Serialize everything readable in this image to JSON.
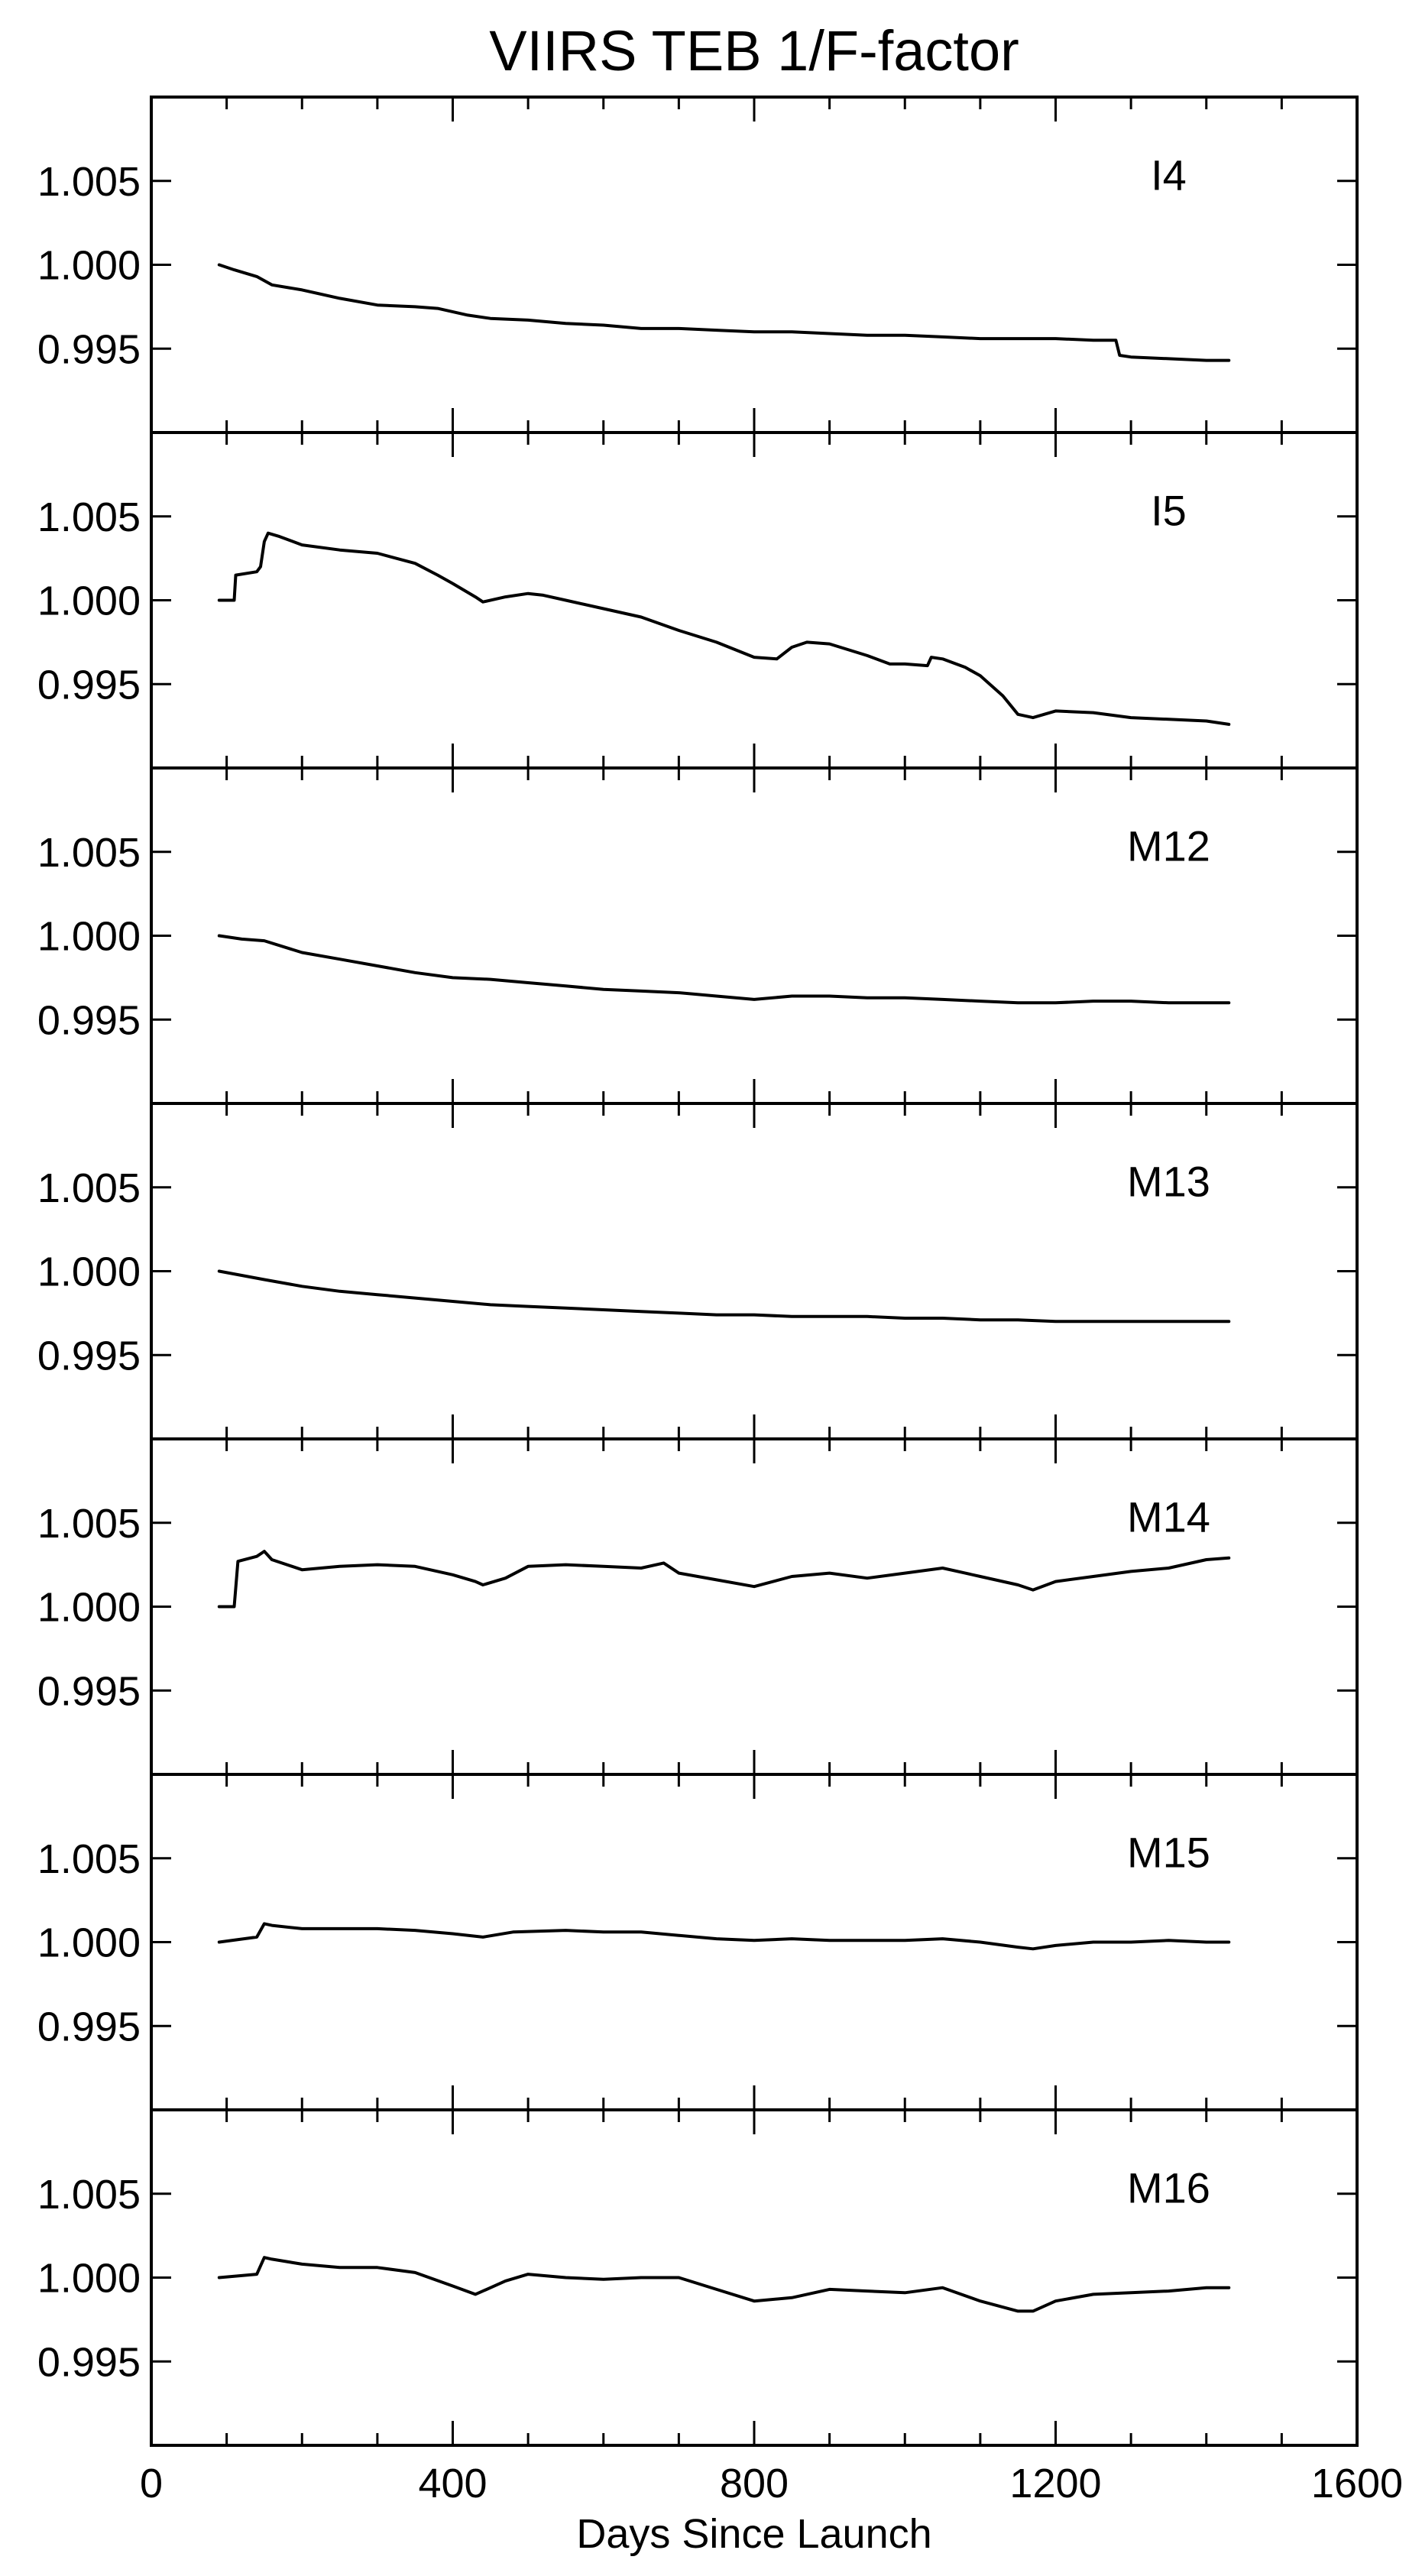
{
  "chart_data": {
    "type": "line",
    "title": "VIIRS TEB 1/F-factor",
    "xlabel": "Days Since Launch",
    "ylabel": "",
    "xlim": [
      0,
      1600
    ],
    "xticks": [
      0,
      400,
      800,
      1200,
      1600
    ],
    "x_minor_step": 100,
    "ylim": [
      0.99,
      1.01
    ],
    "yticks": [
      0.995,
      1.0,
      1.005
    ],
    "ytick_labels": [
      "0.995",
      "1.000",
      "1.005"
    ],
    "line_color": "#000000",
    "grid": false,
    "panels": [
      {
        "label": "I4",
        "x": [
          90,
          110,
          140,
          160,
          200,
          250,
          300,
          350,
          380,
          420,
          450,
          500,
          550,
          600,
          650,
          700,
          750,
          800,
          850,
          900,
          950,
          1000,
          1050,
          1100,
          1150,
          1200,
          1250,
          1280,
          1285,
          1300,
          1350,
          1400,
          1430
        ],
        "y": [
          1.0,
          0.9997,
          0.9993,
          0.9988,
          0.9985,
          0.998,
          0.9976,
          0.9975,
          0.9974,
          0.997,
          0.9968,
          0.9967,
          0.9965,
          0.9964,
          0.9962,
          0.9962,
          0.9961,
          0.996,
          0.996,
          0.9959,
          0.9958,
          0.9958,
          0.9957,
          0.9956,
          0.9956,
          0.9956,
          0.9955,
          0.9955,
          0.9946,
          0.9945,
          0.9944,
          0.9943,
          0.9943
        ]
      },
      {
        "label": "I5",
        "x": [
          90,
          110,
          112,
          140,
          145,
          150,
          155,
          170,
          200,
          250,
          300,
          350,
          380,
          400,
          430,
          440,
          470,
          500,
          520,
          550,
          600,
          650,
          700,
          750,
          800,
          830,
          850,
          870,
          900,
          950,
          980,
          1000,
          1030,
          1035,
          1050,
          1080,
          1100,
          1130,
          1150,
          1170,
          1200,
          1250,
          1300,
          1350,
          1400,
          1430
        ],
        "y": [
          1.0,
          1.0,
          1.0015,
          1.0017,
          1.002,
          1.0035,
          1.004,
          1.0038,
          1.0033,
          1.003,
          1.0028,
          1.0022,
          1.0015,
          1.001,
          1.0002,
          0.9999,
          1.0002,
          1.0004,
          1.0003,
          1.0,
          0.9995,
          0.999,
          0.9982,
          0.9975,
          0.9966,
          0.9965,
          0.9972,
          0.9975,
          0.9974,
          0.9967,
          0.9962,
          0.9962,
          0.9961,
          0.9966,
          0.9965,
          0.996,
          0.9955,
          0.9943,
          0.9932,
          0.993,
          0.9934,
          0.9933,
          0.993,
          0.9929,
          0.9928,
          0.9926
        ]
      },
      {
        "label": "M12",
        "x": [
          90,
          120,
          150,
          200,
          250,
          300,
          350,
          400,
          450,
          500,
          550,
          600,
          650,
          700,
          750,
          800,
          850,
          900,
          950,
          1000,
          1050,
          1100,
          1150,
          1200,
          1250,
          1300,
          1350,
          1400,
          1430
        ],
        "y": [
          1.0,
          0.9998,
          0.9997,
          0.999,
          0.9986,
          0.9982,
          0.9978,
          0.9975,
          0.9974,
          0.9972,
          0.997,
          0.9968,
          0.9967,
          0.9966,
          0.9964,
          0.9962,
          0.9964,
          0.9964,
          0.9963,
          0.9963,
          0.9962,
          0.9961,
          0.996,
          0.996,
          0.9961,
          0.9961,
          0.996,
          0.996,
          0.996
        ]
      },
      {
        "label": "M13",
        "x": [
          90,
          150,
          200,
          250,
          300,
          350,
          400,
          450,
          500,
          550,
          600,
          650,
          700,
          750,
          800,
          850,
          900,
          950,
          1000,
          1050,
          1100,
          1150,
          1200,
          1250,
          1300,
          1350,
          1400,
          1430
        ],
        "y": [
          1.0,
          0.9995,
          0.9991,
          0.9988,
          0.9986,
          0.9984,
          0.9982,
          0.998,
          0.9979,
          0.9978,
          0.9977,
          0.9976,
          0.9975,
          0.9974,
          0.9974,
          0.9973,
          0.9973,
          0.9973,
          0.9972,
          0.9972,
          0.9971,
          0.9971,
          0.997,
          0.997,
          0.997,
          0.997,
          0.997,
          0.997
        ]
      },
      {
        "label": "M14",
        "x": [
          90,
          110,
          115,
          140,
          150,
          160,
          200,
          250,
          300,
          350,
          400,
          430,
          440,
          470,
          500,
          550,
          600,
          650,
          680,
          700,
          750,
          800,
          850,
          900,
          950,
          1000,
          1050,
          1080,
          1100,
          1150,
          1170,
          1200,
          1250,
          1300,
          1350,
          1400,
          1430
        ],
        "y": [
          1.0,
          1.0,
          1.0027,
          1.003,
          1.0033,
          1.0028,
          1.0022,
          1.0024,
          1.0025,
          1.0024,
          1.0019,
          1.0015,
          1.0013,
          1.0017,
          1.0024,
          1.0025,
          1.0024,
          1.0023,
          1.0026,
          1.002,
          1.0016,
          1.0012,
          1.0018,
          1.002,
          1.0017,
          1.002,
          1.0023,
          1.002,
          1.0018,
          1.0013,
          1.001,
          1.0015,
          1.0018,
          1.0021,
          1.0023,
          1.0028,
          1.0029
        ]
      },
      {
        "label": "M15",
        "x": [
          90,
          140,
          150,
          160,
          200,
          250,
          300,
          350,
          400,
          440,
          480,
          550,
          600,
          650,
          700,
          750,
          800,
          850,
          900,
          950,
          1000,
          1050,
          1100,
          1150,
          1170,
          1200,
          1250,
          1300,
          1350,
          1400,
          1430
        ],
        "y": [
          1.0,
          1.0003,
          1.0011,
          1.001,
          1.0008,
          1.0008,
          1.0008,
          1.0007,
          1.0005,
          1.0003,
          1.0006,
          1.0007,
          1.0006,
          1.0006,
          1.0004,
          1.0002,
          1.0001,
          1.0002,
          1.0001,
          1.0001,
          1.0001,
          1.0002,
          1.0,
          0.9997,
          0.9996,
          0.9998,
          1.0,
          1.0,
          1.0001,
          1.0,
          1.0
        ]
      },
      {
        "label": "M16",
        "x": [
          90,
          140,
          150,
          160,
          200,
          250,
          300,
          350,
          400,
          430,
          440,
          470,
          500,
          550,
          600,
          650,
          700,
          750,
          800,
          850,
          900,
          950,
          1000,
          1050,
          1100,
          1150,
          1170,
          1200,
          1250,
          1300,
          1350,
          1400,
          1430
        ],
        "y": [
          1.0,
          1.0002,
          1.0012,
          1.0011,
          1.0008,
          1.0006,
          1.0006,
          1.0003,
          0.9995,
          0.999,
          0.9992,
          0.9998,
          1.0002,
          1.0,
          0.9999,
          1.0,
          1.0,
          0.9993,
          0.9986,
          0.9988,
          0.9993,
          0.9992,
          0.9991,
          0.9994,
          0.9986,
          0.998,
          0.998,
          0.9986,
          0.999,
          0.9991,
          0.9992,
          0.9994,
          0.9994
        ]
      }
    ]
  }
}
